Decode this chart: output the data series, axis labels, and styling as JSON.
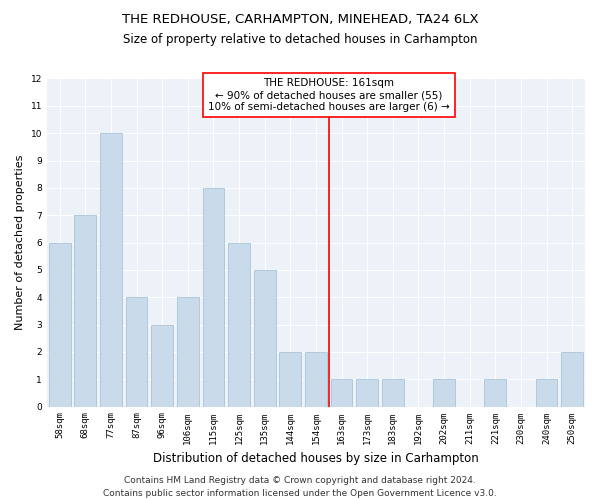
{
  "title": "THE REDHOUSE, CARHAMPTON, MINEHEAD, TA24 6LX",
  "subtitle": "Size of property relative to detached houses in Carhampton",
  "xlabel": "Distribution of detached houses by size in Carhampton",
  "ylabel": "Number of detached properties",
  "categories": [
    "58sqm",
    "68sqm",
    "77sqm",
    "87sqm",
    "96sqm",
    "106sqm",
    "115sqm",
    "125sqm",
    "135sqm",
    "144sqm",
    "154sqm",
    "163sqm",
    "173sqm",
    "183sqm",
    "192sqm",
    "202sqm",
    "211sqm",
    "221sqm",
    "230sqm",
    "240sqm",
    "250sqm"
  ],
  "values": [
    6,
    7,
    10,
    4,
    3,
    4,
    8,
    6,
    5,
    2,
    2,
    1,
    1,
    1,
    0,
    1,
    0,
    1,
    0,
    1,
    2
  ],
  "bar_color": "#c9daea",
  "bar_edge_color": "#a8c4d8",
  "redline_index": 11,
  "annotation_text": "THE REDHOUSE: 161sqm\n← 90% of detached houses are smaller (55)\n10% of semi-detached houses are larger (6) →",
  "ylim": [
    0,
    12
  ],
  "yticks": [
    0,
    1,
    2,
    3,
    4,
    5,
    6,
    7,
    8,
    9,
    10,
    11,
    12
  ],
  "footer": "Contains HM Land Registry data © Crown copyright and database right 2024.\nContains public sector information licensed under the Open Government Licence v3.0.",
  "bg_color": "#edf2f8",
  "grid_color": "#ffffff",
  "title_fontsize": 9.5,
  "subtitle_fontsize": 8.5,
  "ylabel_fontsize": 8,
  "xlabel_fontsize": 8.5,
  "tick_fontsize": 6.5,
  "footer_fontsize": 6.5,
  "annot_fontsize": 7.5
}
